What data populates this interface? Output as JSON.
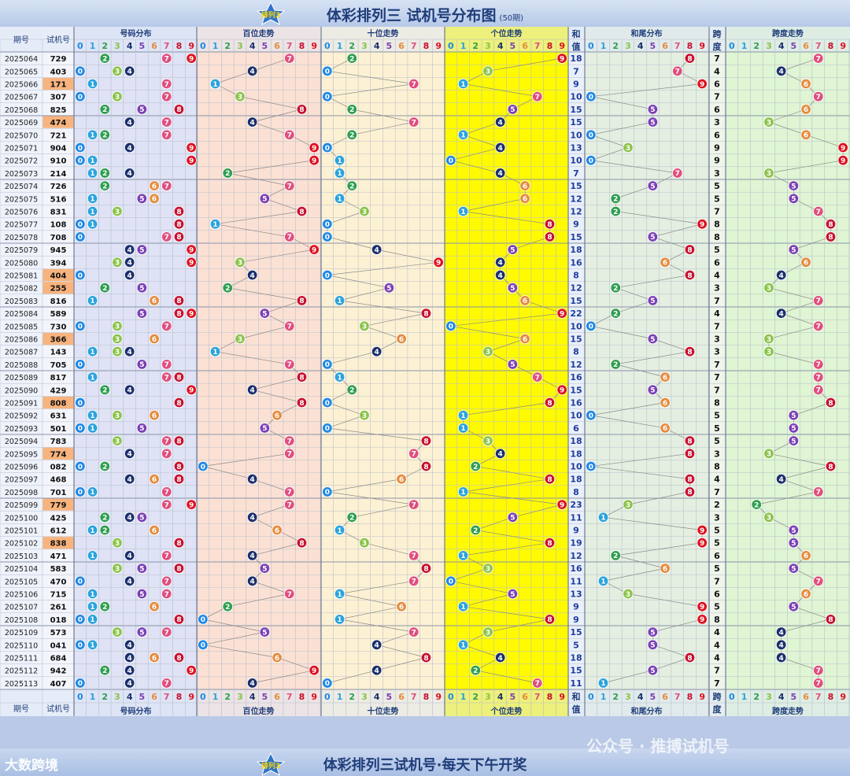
{
  "title": "体彩排列三 试机号分布图",
  "title_periods": "(50期)",
  "badge_text": "排列3",
  "footer": {
    "slogan": "体彩排列三试机号·每天下午开奖",
    "brand": "大数跨境",
    "watermark": "公众号 · 推搏试机号"
  },
  "headers": {
    "period": "期号",
    "trial": "试机号",
    "sections": [
      "号码分布",
      "百位走势",
      "十位走势",
      "个位走势",
      "和尾分布",
      "跨度走势"
    ],
    "sum": [
      "和",
      "值"
    ],
    "span": [
      "跨",
      "度"
    ]
  },
  "colors": {
    "digits": [
      "#1e88e5",
      "#29a3dd",
      "#2e9e4f",
      "#8bc34a",
      "#1a2f6b",
      "#7b3fb5",
      "#e58b3c",
      "#e04e7e",
      "#c8102e",
      "#e0101e"
    ],
    "sec_backgrounds": [
      "#dfe3f5",
      "#fbe1d4",
      "#fdf1d3",
      "#fffa00",
      "#e4efe1",
      "#dff5d3"
    ],
    "highlight_cell": "#f8b37e"
  },
  "chart_data": {
    "type": "table",
    "periods": [
      "2025064",
      "2025065",
      "2025066",
      "2025067",
      "2025068",
      "2025069",
      "2025070",
      "2025071",
      "2025072",
      "2025073",
      "2025074",
      "2025075",
      "2025076",
      "2025077",
      "2025078",
      "2025079",
      "2025080",
      "2025081",
      "2025082",
      "2025083",
      "2025084",
      "2025085",
      "2025086",
      "2025087",
      "2025088",
      "2025089",
      "2025090",
      "2025091",
      "2025092",
      "2025093",
      "2025094",
      "2025095",
      "2025096",
      "2025097",
      "2025098",
      "2025099",
      "2025100",
      "2025101",
      "2025102",
      "2025103",
      "2025104",
      "2025105",
      "2025106",
      "2025107",
      "2025108",
      "2025109",
      "2025110",
      "2025111",
      "2025112",
      "2025113"
    ],
    "numbers": [
      "729",
      "403",
      "171",
      "307",
      "825",
      "474",
      "721",
      "904",
      "910",
      "214",
      "726",
      "516",
      "831",
      "108",
      "708",
      "945",
      "394",
      "404",
      "255",
      "816",
      "589",
      "730",
      "366",
      "143",
      "705",
      "817",
      "429",
      "808",
      "631",
      "501",
      "783",
      "774",
      "082",
      "468",
      "701",
      "779",
      "425",
      "612",
      "838",
      "471",
      "583",
      "470",
      "715",
      "261",
      "018",
      "573",
      "041",
      "684",
      "942",
      "407"
    ],
    "highlighted": [
      "171",
      "474",
      "404",
      "255",
      "366",
      "808",
      "774",
      "779",
      "838"
    ],
    "sums": [
      18,
      7,
      9,
      10,
      15,
      15,
      10,
      13,
      10,
      7,
      15,
      12,
      12,
      9,
      15,
      18,
      16,
      8,
      12,
      15,
      22,
      10,
      15,
      8,
      12,
      16,
      15,
      16,
      10,
      6,
      18,
      18,
      10,
      18,
      8,
      23,
      11,
      9,
      19,
      12,
      16,
      11,
      13,
      9,
      9,
      15,
      5,
      18,
      15,
      11
    ],
    "spans": [
      7,
      4,
      6,
      7,
      6,
      3,
      6,
      9,
      9,
      3,
      5,
      5,
      7,
      8,
      8,
      5,
      6,
      4,
      3,
      7,
      4,
      7,
      3,
      3,
      7,
      7,
      7,
      8,
      5,
      5,
      5,
      3,
      8,
      4,
      7,
      2,
      3,
      5,
      5,
      6,
      5,
      7,
      6,
      5,
      8,
      4,
      4,
      4,
      7,
      7
    ],
    "digits_axis": [
      "0",
      "1",
      "2",
      "3",
      "4",
      "5",
      "6",
      "7",
      "8",
      "9"
    ]
  }
}
